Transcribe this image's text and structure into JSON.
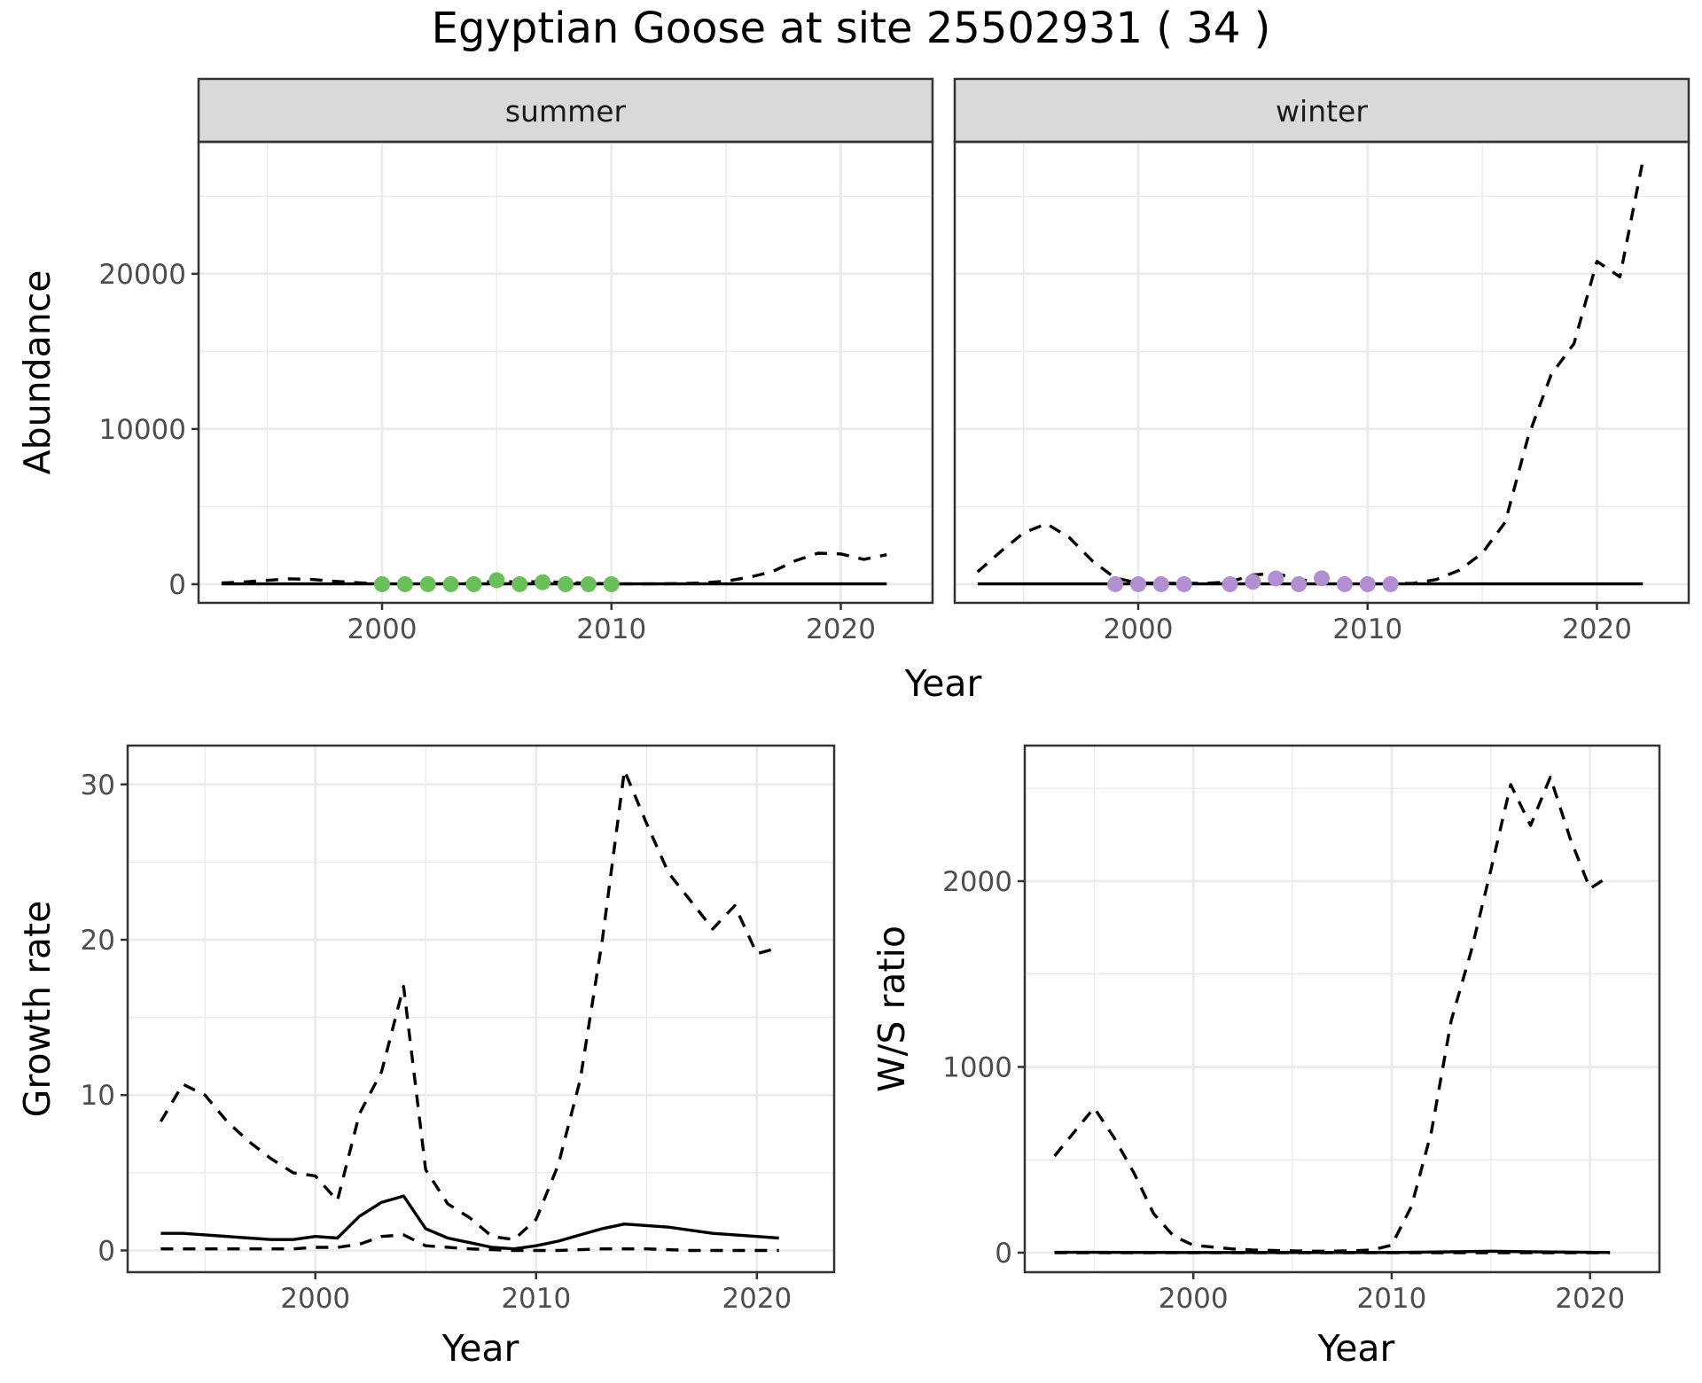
{
  "figure": {
    "title": "Egyptian Goose at site 25502931 ( 34 )"
  },
  "colors": {
    "summer_points": "#6abf5a",
    "winter_points": "#b28fd0",
    "lines": "#000000",
    "strip_background": "#d9d9d9",
    "grid": "#ebebeb"
  },
  "chart_data": [
    {
      "type": "line",
      "panel": "summer",
      "strip": "summer",
      "xlabel": "Year",
      "ylabel": "Abundance",
      "xlim": [
        1992,
        2024
      ],
      "ylim": [
        -1200,
        28500
      ],
      "x_ticks": [
        2000,
        2010,
        2020
      ],
      "y_ticks": [
        0,
        10000,
        20000
      ],
      "grid": true,
      "series": [
        {
          "style": "solid",
          "x": [
            1993,
            1995,
            2000,
            2005,
            2010,
            2015,
            2020,
            2022
          ],
          "y": [
            20,
            20,
            25,
            30,
            25,
            20,
            20,
            20
          ]
        },
        {
          "style": "dashed",
          "x": [
            1993,
            1994,
            1995,
            1996,
            1997,
            1998,
            1999,
            2000,
            2001,
            2002,
            2003,
            2004,
            2005,
            2006,
            2007,
            2008,
            2009,
            2010,
            2011,
            2012,
            2013,
            2014,
            2015,
            2016,
            2017,
            2018,
            2019,
            2020,
            2021,
            2022
          ],
          "y": [
            80,
            150,
            250,
            350,
            300,
            180,
            90,
            30,
            30,
            30,
            30,
            60,
            220,
            120,
            180,
            100,
            60,
            30,
            20,
            20,
            40,
            80,
            200,
            450,
            800,
            1500,
            2000,
            1950,
            1600,
            1900
          ]
        }
      ],
      "points": {
        "x": [
          2000,
          2001,
          2002,
          2003,
          2004,
          2005,
          2006,
          2007,
          2008,
          2009,
          2010
        ],
        "y": [
          0,
          0,
          0,
          0,
          0,
          260,
          0,
          130,
          0,
          0,
          0
        ]
      }
    },
    {
      "type": "line",
      "panel": "winter",
      "strip": "winter",
      "xlabel": "Year",
      "ylabel": "",
      "xlim": [
        1992,
        2024
      ],
      "ylim": [
        -1200,
        28500
      ],
      "x_ticks": [
        2000,
        2010,
        2020
      ],
      "y_ticks": [
        0,
        10000,
        20000
      ],
      "grid": true,
      "series": [
        {
          "style": "solid",
          "x": [
            1993,
            2000,
            2010,
            2020,
            2022
          ],
          "y": [
            20,
            20,
            20,
            20,
            20
          ]
        },
        {
          "style": "dashed",
          "x": [
            1993,
            1994,
            1995,
            1996,
            1997,
            1998,
            1999,
            2000,
            2001,
            2002,
            2003,
            2004,
            2005,
            2006,
            2007,
            2008,
            2009,
            2010,
            2011,
            2012,
            2013,
            2014,
            2015,
            2016,
            2017,
            2018,
            2019,
            2020,
            2021,
            2022
          ],
          "y": [
            800,
            2100,
            3300,
            3900,
            3000,
            1500,
            400,
            80,
            60,
            60,
            60,
            150,
            600,
            700,
            300,
            150,
            80,
            60,
            30,
            60,
            300,
            900,
            2000,
            4000,
            9500,
            13500,
            15500,
            20800,
            19800,
            27300
          ]
        }
      ],
      "points": {
        "x": [
          1999,
          2000,
          2001,
          2002,
          2004,
          2005,
          2006,
          2007,
          2008,
          2009,
          2010,
          2011
        ],
        "y": [
          0,
          0,
          0,
          0,
          0,
          160,
          370,
          0,
          380,
          0,
          0,
          0
        ]
      }
    },
    {
      "type": "line",
      "panel": "growth",
      "xlabel": "Year",
      "ylabel": "Growth rate",
      "xlim": [
        1991.5,
        2023.5
      ],
      "ylim": [
        -1.4,
        32.5
      ],
      "x_ticks": [
        2000,
        2010,
        2020
      ],
      "y_ticks": [
        0,
        10,
        20,
        30
      ],
      "grid": true,
      "series": [
        {
          "style": "solid",
          "x": [
            1993,
            1994,
            1995,
            1996,
            1997,
            1998,
            1999,
            2000,
            2001,
            2002,
            2003,
            2004,
            2005,
            2006,
            2007,
            2008,
            2009,
            2010,
            2011,
            2012,
            2013,
            2014,
            2015,
            2016,
            2017,
            2018,
            2019,
            2020,
            2021
          ],
          "y": [
            1.1,
            1.1,
            1.0,
            0.9,
            0.8,
            0.7,
            0.7,
            0.9,
            0.8,
            2.2,
            3.1,
            3.5,
            1.4,
            0.8,
            0.5,
            0.2,
            0.1,
            0.3,
            0.6,
            1.0,
            1.4,
            1.7,
            1.6,
            1.5,
            1.3,
            1.1,
            1.0,
            0.9,
            0.8
          ]
        },
        {
          "style": "dashed",
          "x": [
            1993,
            1994,
            1995,
            1996,
            1997,
            1998,
            1999,
            2000,
            2001,
            2002,
            2003,
            2004,
            2005,
            2006,
            2007,
            2008,
            2009,
            2010,
            2011,
            2012,
            2013,
            2014,
            2015,
            2016,
            2017,
            2018,
            2019,
            2020,
            2021
          ],
          "y": [
            8.3,
            10.7,
            10.0,
            8.3,
            7.0,
            5.9,
            5.0,
            4.8,
            3.2,
            8.8,
            11.5,
            17.0,
            5.2,
            3.0,
            2.1,
            0.9,
            0.7,
            2.0,
            5.5,
            11.0,
            20.0,
            30.9,
            27.5,
            24.3,
            22.5,
            20.7,
            22.2,
            19.1,
            19.5
          ]
        },
        {
          "style": "dashed",
          "x": [
            1993,
            1995,
            1997,
            1999,
            2000,
            2001,
            2002,
            2003,
            2004,
            2005,
            2007,
            2009,
            2011,
            2013,
            2015,
            2017,
            2019,
            2021
          ],
          "y": [
            0.1,
            0.1,
            0.1,
            0.1,
            0.2,
            0.2,
            0.4,
            0.9,
            1.0,
            0.3,
            0.1,
            0.0,
            0.0,
            0.1,
            0.1,
            0.0,
            0.0,
            0.0
          ]
        }
      ]
    },
    {
      "type": "line",
      "panel": "ratio",
      "xlabel": "Year",
      "ylabel": "W/S ratio",
      "xlim": [
        1991.5,
        2023.5
      ],
      "ylim": [
        -105,
        2730
      ],
      "x_ticks": [
        2000,
        2010,
        2020
      ],
      "y_ticks": [
        0,
        1000,
        2000
      ],
      "grid": true,
      "series": [
        {
          "style": "solid",
          "x": [
            1993,
            1995,
            2000,
            2005,
            2010,
            2013,
            2015,
            2017,
            2020,
            2021
          ],
          "y": [
            2,
            2,
            1,
            1,
            1,
            5,
            8,
            5,
            2,
            1
          ]
        },
        {
          "style": "dashed",
          "x": [
            1993,
            1994,
            1995,
            1996,
            1997,
            1998,
            1999,
            2000,
            2001,
            2002,
            2003,
            2004,
            2005,
            2006,
            2007,
            2008,
            2009,
            2010,
            2011,
            2012,
            2013,
            2014,
            2015,
            2016,
            2017,
            2018,
            2019,
            2020,
            2021
          ],
          "y": [
            520,
            650,
            780,
            620,
            430,
            210,
            90,
            40,
            30,
            20,
            15,
            12,
            10,
            8,
            8,
            10,
            15,
            40,
            250,
            650,
            1250,
            1620,
            2060,
            2520,
            2300,
            2560,
            2230,
            1960,
            2030
          ]
        },
        {
          "style": "dashed",
          "x": [
            1993,
            2000,
            2010,
            2021
          ],
          "y": [
            0,
            0,
            0,
            0
          ]
        }
      ]
    }
  ]
}
